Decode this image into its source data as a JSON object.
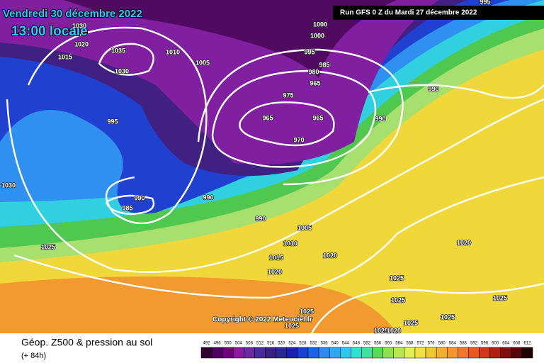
{
  "header": {
    "date": "Vendredi 30 décembre 2022",
    "time": "13:00 locale",
    "run": "Run GFS 0 Z du Mardi 27 décembre 2022"
  },
  "copyright": "Copyright © 2022 Meteociel.fr",
  "footer": {
    "title": "Géop. Z500 & pression au sol",
    "lead": "(+ 84h)"
  },
  "isobar_labels": [
    1030,
    1020,
    1015,
    1035,
    1030,
    1010,
    1005,
    1000,
    1000,
    995,
    985,
    980,
    965,
    975,
    990,
    995,
    965,
    965,
    970,
    990,
    1030,
    990,
    985,
    990,
    990,
    1005,
    1010,
    1025,
    1015,
    1020,
    1020,
    1020,
    1025,
    1025,
    1025,
    1025,
    1025,
    1020,
    1025,
    1025,
    1025,
    995
  ],
  "legend": {
    "labels": [
      492,
      496,
      500,
      504,
      508,
      512,
      516,
      520,
      524,
      528,
      532,
      536,
      540,
      544,
      548,
      552,
      556,
      560,
      564,
      568,
      572,
      576,
      580,
      584,
      588,
      592,
      596,
      600,
      604,
      608,
      612
    ],
    "colors": [
      "#300030",
      "#500060",
      "#700080",
      "#8a1aa0",
      "#6a2aa0",
      "#4a2a9a",
      "#3a2080",
      "#2a2a8a",
      "#1a20b0",
      "#1a40d0",
      "#2060e8",
      "#3088f0",
      "#30a8f0",
      "#30c8e8",
      "#30e0d0",
      "#40e0a0",
      "#60d860",
      "#90e050",
      "#b8e850",
      "#e0f050",
      "#f0e040",
      "#f0c830",
      "#f0b030",
      "#f09830",
      "#f07828",
      "#e85820",
      "#d03818",
      "#b02010",
      "#801010",
      "#500808",
      "#200000"
    ]
  }
}
